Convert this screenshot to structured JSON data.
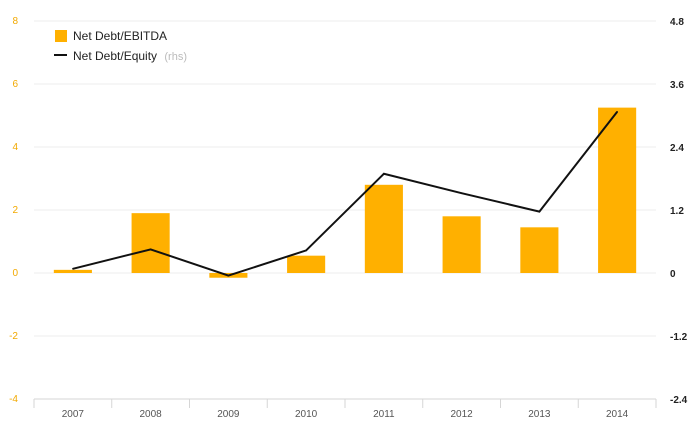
{
  "chart_data": {
    "type": "bar",
    "categories": [
      "2007",
      "2008",
      "2009",
      "2010",
      "2011",
      "2012",
      "2013",
      "2014"
    ],
    "series": [
      {
        "name": "Net Debt/EBITDA",
        "type": "bar",
        "axis": "left",
        "values": [
          0.1,
          1.9,
          -0.15,
          0.55,
          2.8,
          1.8,
          1.45,
          5.25
        ]
      },
      {
        "name": "Net Debt/Equity",
        "name_suffix": "(rhs)",
        "type": "line",
        "axis": "right",
        "values": [
          0.08,
          0.45,
          -0.05,
          0.43,
          1.89,
          1.52,
          1.17,
          3.07
        ]
      }
    ],
    "y_left": {
      "min": -4,
      "max": 8,
      "ticks": [
        "8",
        "6",
        "4",
        "2",
        "0",
        "-2",
        "-4"
      ]
    },
    "y_right": {
      "min": -2.4,
      "max": 4.8,
      "ticks": [
        "4.8",
        "3.6",
        "2.4",
        "1.2",
        "0",
        "-1.2",
        "-2.4"
      ]
    },
    "grid": true,
    "legend": "top-left",
    "colors": {
      "bar": "#FFB000",
      "line": "#111111",
      "left_ticks": "#F2A900",
      "right_ticks": "#222222"
    }
  }
}
